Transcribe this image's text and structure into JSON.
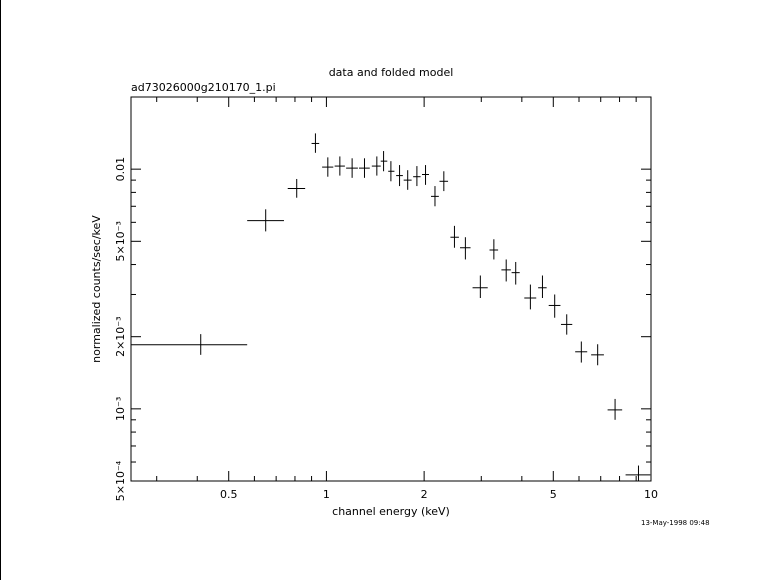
{
  "chart_data": {
    "type": "scatter",
    "title": "data and folded model",
    "subtitle": "ad73026000g210170_1.pi",
    "xlabel": "channel energy (keV)",
    "ylabel": "normalized counts/sec/keV",
    "xscale": "log",
    "yscale": "log",
    "xlim": [
      0.25,
      10
    ],
    "ylim": [
      0.0005,
      0.02
    ],
    "x_ticks": [
      {
        "value": 0.5,
        "label": "0.5"
      },
      {
        "value": 1,
        "label": "1"
      },
      {
        "value": 2,
        "label": "2"
      },
      {
        "value": 5,
        "label": "5"
      },
      {
        "value": 10,
        "label": "10"
      }
    ],
    "y_ticks": [
      {
        "value": 0.0005,
        "label": "5×10⁻⁴"
      },
      {
        "value": 0.001,
        "label": "10⁻³"
      },
      {
        "value": 0.002,
        "label": "2×10⁻³"
      },
      {
        "value": 0.005,
        "label": "5×10⁻³"
      },
      {
        "value": 0.01,
        "label": "0.01"
      }
    ],
    "series": [
      {
        "points": [
          {
            "x": 0.41,
            "xlo": 0.25,
            "xhi": 0.57,
            "y": 0.00185,
            "ylo": 0.00168,
            "yhi": 0.00205
          },
          {
            "x": 0.65,
            "xlo": 0.57,
            "xhi": 0.74,
            "y": 0.0061,
            "ylo": 0.0055,
            "yhi": 0.0068
          },
          {
            "x": 0.81,
            "xlo": 0.76,
            "xhi": 0.86,
            "y": 0.0083,
            "ylo": 0.0076,
            "yhi": 0.0091
          },
          {
            "x": 0.925,
            "xlo": 0.9,
            "xhi": 0.95,
            "y": 0.0128,
            "ylo": 0.0117,
            "yhi": 0.0141
          },
          {
            "x": 1.01,
            "xlo": 0.97,
            "xhi": 1.05,
            "y": 0.0102,
            "ylo": 0.0093,
            "yhi": 0.0112
          },
          {
            "x": 1.1,
            "xlo": 1.06,
            "xhi": 1.14,
            "y": 0.0103,
            "ylo": 0.0094,
            "yhi": 0.0113
          },
          {
            "x": 1.2,
            "xlo": 1.15,
            "xhi": 1.25,
            "y": 0.0101,
            "ylo": 0.0092,
            "yhi": 0.0111
          },
          {
            "x": 1.31,
            "xlo": 1.26,
            "xhi": 1.36,
            "y": 0.0101,
            "ylo": 0.0092,
            "yhi": 0.0111
          },
          {
            "x": 1.43,
            "xlo": 1.38,
            "xhi": 1.47,
            "y": 0.0103,
            "ylo": 0.0094,
            "yhi": 0.0113
          },
          {
            "x": 1.5,
            "xlo": 1.47,
            "xhi": 1.54,
            "y": 0.0108,
            "ylo": 0.0098,
            "yhi": 0.0119
          },
          {
            "x": 1.58,
            "xlo": 1.55,
            "xhi": 1.62,
            "y": 0.0098,
            "ylo": 0.0089,
            "yhi": 0.0108
          },
          {
            "x": 1.68,
            "xlo": 1.64,
            "xhi": 1.72,
            "y": 0.0094,
            "ylo": 0.0085,
            "yhi": 0.0104
          },
          {
            "x": 1.78,
            "xlo": 1.73,
            "xhi": 1.83,
            "y": 0.009,
            "ylo": 0.0082,
            "yhi": 0.0099
          },
          {
            "x": 1.9,
            "xlo": 1.85,
            "xhi": 1.95,
            "y": 0.0093,
            "ylo": 0.0085,
            "yhi": 0.0103
          },
          {
            "x": 2.02,
            "xlo": 1.97,
            "xhi": 2.07,
            "y": 0.0095,
            "ylo": 0.0086,
            "yhi": 0.0104
          },
          {
            "x": 2.16,
            "xlo": 2.1,
            "xhi": 2.22,
            "y": 0.0077,
            "ylo": 0.007,
            "yhi": 0.0085
          },
          {
            "x": 2.3,
            "xlo": 2.23,
            "xhi": 2.37,
            "y": 0.0089,
            "ylo": 0.0081,
            "yhi": 0.0098
          },
          {
            "x": 2.48,
            "xlo": 2.41,
            "xhi": 2.56,
            "y": 0.0052,
            "ylo": 0.0047,
            "yhi": 0.0058
          },
          {
            "x": 2.68,
            "xlo": 2.58,
            "xhi": 2.78,
            "y": 0.0047,
            "ylo": 0.0042,
            "yhi": 0.0052
          },
          {
            "x": 2.98,
            "xlo": 2.82,
            "xhi": 3.14,
            "y": 0.0032,
            "ylo": 0.0029,
            "yhi": 0.0036
          },
          {
            "x": 3.28,
            "xlo": 3.18,
            "xhi": 3.38,
            "y": 0.0046,
            "ylo": 0.0042,
            "yhi": 0.0051
          },
          {
            "x": 3.58,
            "xlo": 3.46,
            "xhi": 3.7,
            "y": 0.0038,
            "ylo": 0.0034,
            "yhi": 0.0042
          },
          {
            "x": 3.83,
            "xlo": 3.72,
            "xhi": 3.94,
            "y": 0.0037,
            "ylo": 0.0033,
            "yhi": 0.0041
          },
          {
            "x": 4.25,
            "xlo": 4.07,
            "xhi": 4.43,
            "y": 0.0029,
            "ylo": 0.0026,
            "yhi": 0.0033
          },
          {
            "x": 4.63,
            "xlo": 4.49,
            "xhi": 4.77,
            "y": 0.0032,
            "ylo": 0.0029,
            "yhi": 0.0036
          },
          {
            "x": 5.05,
            "xlo": 4.84,
            "xhi": 5.26,
            "y": 0.0027,
            "ylo": 0.0024,
            "yhi": 0.003
          },
          {
            "x": 5.5,
            "xlo": 5.28,
            "xhi": 5.72,
            "y": 0.00225,
            "ylo": 0.00204,
            "yhi": 0.00248
          },
          {
            "x": 6.1,
            "xlo": 5.84,
            "xhi": 6.36,
            "y": 0.00173,
            "ylo": 0.00156,
            "yhi": 0.00191
          },
          {
            "x": 6.85,
            "xlo": 6.54,
            "xhi": 7.16,
            "y": 0.00168,
            "ylo": 0.00152,
            "yhi": 0.00186
          },
          {
            "x": 7.75,
            "xlo": 7.35,
            "xhi": 8.15,
            "y": 0.00099,
            "ylo": 0.0009,
            "yhi": 0.0011
          },
          {
            "x": 9.15,
            "xlo": 8.35,
            "xhi": 9.95,
            "y": 0.00053,
            "ylo": 0.00048,
            "yhi": 0.00058
          }
        ]
      }
    ],
    "grid": false,
    "legend": "none",
    "timestamp": "13-May-1998 09:48"
  }
}
